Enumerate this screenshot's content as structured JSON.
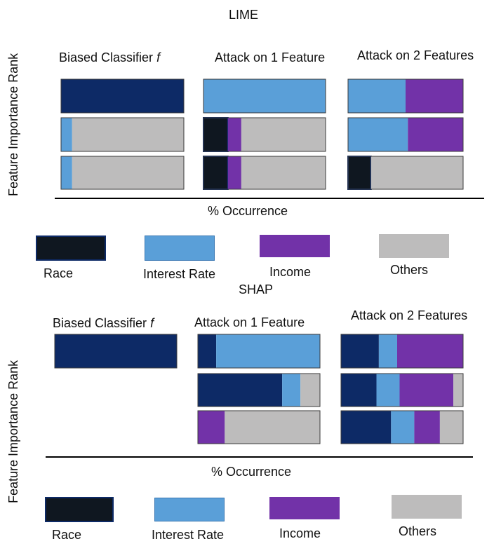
{
  "colors": {
    "Race": "#0f1720",
    "Interest Rate": "#5a9fd8",
    "Income": "#7232a8",
    "Others": "#bdbcbc",
    "Biased": "#0d2a66"
  },
  "chart_data": [
    {
      "type": "bar",
      "title": "LIME",
      "ylabel": "Feature Importance Rank",
      "xlabel": "% Occurrence",
      "legend": [
        "Race",
        "Interest Rate",
        "Income",
        "Others"
      ],
      "legend_position": "bottom",
      "panels": [
        {
          "label": "Biased Classifier",
          "label_suffix": "f",
          "ranks": [
            [
              {
                "feature": "Biased",
                "value": 100
              }
            ],
            [
              {
                "feature": "Interest Rate",
                "value": 9
              },
              {
                "feature": "Others",
                "value": 91
              }
            ],
            [
              {
                "feature": "Interest Rate",
                "value": 9
              },
              {
                "feature": "Others",
                "value": 91
              }
            ]
          ]
        },
        {
          "label": "Attack on 1 Feature",
          "label_suffix": "",
          "ranks": [
            [
              {
                "feature": "Interest Rate",
                "value": 100
              }
            ],
            [
              {
                "feature": "Race",
                "value": 20
              },
              {
                "feature": "Income",
                "value": 11
              },
              {
                "feature": "Others",
                "value": 69
              }
            ],
            [
              {
                "feature": "Race",
                "value": 20
              },
              {
                "feature": "Income",
                "value": 11
              },
              {
                "feature": "Others",
                "value": 69
              }
            ]
          ]
        },
        {
          "label": "Attack on 2 Features",
          "label_suffix": "",
          "ranks": [
            [
              {
                "feature": "Interest Rate",
                "value": 50
              },
              {
                "feature": "Income",
                "value": 50
              }
            ],
            [
              {
                "feature": "Interest Rate",
                "value": 52
              },
              {
                "feature": "Income",
                "value": 48
              }
            ],
            [
              {
                "feature": "Race",
                "value": 20
              },
              {
                "feature": "Others",
                "value": 80
              }
            ]
          ]
        }
      ]
    },
    {
      "type": "bar",
      "title": "SHAP",
      "ylabel": "Feature Importance Rank",
      "xlabel": "% Occurrence",
      "legend": [
        "Race",
        "Interest Rate",
        "Income",
        "Others"
      ],
      "legend_position": "bottom",
      "panels": [
        {
          "label": "Biased Classifier",
          "label_suffix": "f",
          "ranks": [
            [
              {
                "feature": "Biased",
                "value": 100
              }
            ]
          ]
        },
        {
          "label": "Attack on 1 Feature",
          "label_suffix": "",
          "ranks": [
            [
              {
                "feature": "Biased",
                "value": 15
              },
              {
                "feature": "Interest Rate",
                "value": 85
              }
            ],
            [
              {
                "feature": "Biased",
                "value": 69
              },
              {
                "feature": "Interest Rate",
                "value": 15
              },
              {
                "feature": "Others",
                "value": 16
              }
            ],
            [
              {
                "feature": "Income",
                "value": 22
              },
              {
                "feature": "Others",
                "value": 78
              }
            ]
          ]
        },
        {
          "label": "Attack on 2 Features",
          "label_suffix": "",
          "ranks": [
            [
              {
                "feature": "Biased",
                "value": 31
              },
              {
                "feature": "Interest Rate",
                "value": 15
              },
              {
                "feature": "Income",
                "value": 54
              }
            ],
            [
              {
                "feature": "Biased",
                "value": 29
              },
              {
                "feature": "Interest Rate",
                "value": 19
              },
              {
                "feature": "Income",
                "value": 44
              },
              {
                "feature": "Others",
                "value": 8
              }
            ],
            [
              {
                "feature": "Biased",
                "value": 41
              },
              {
                "feature": "Interest Rate",
                "value": 19
              },
              {
                "feature": "Income",
                "value": 21
              },
              {
                "feature": "Others",
                "value": 19
              }
            ]
          ]
        }
      ]
    }
  ]
}
